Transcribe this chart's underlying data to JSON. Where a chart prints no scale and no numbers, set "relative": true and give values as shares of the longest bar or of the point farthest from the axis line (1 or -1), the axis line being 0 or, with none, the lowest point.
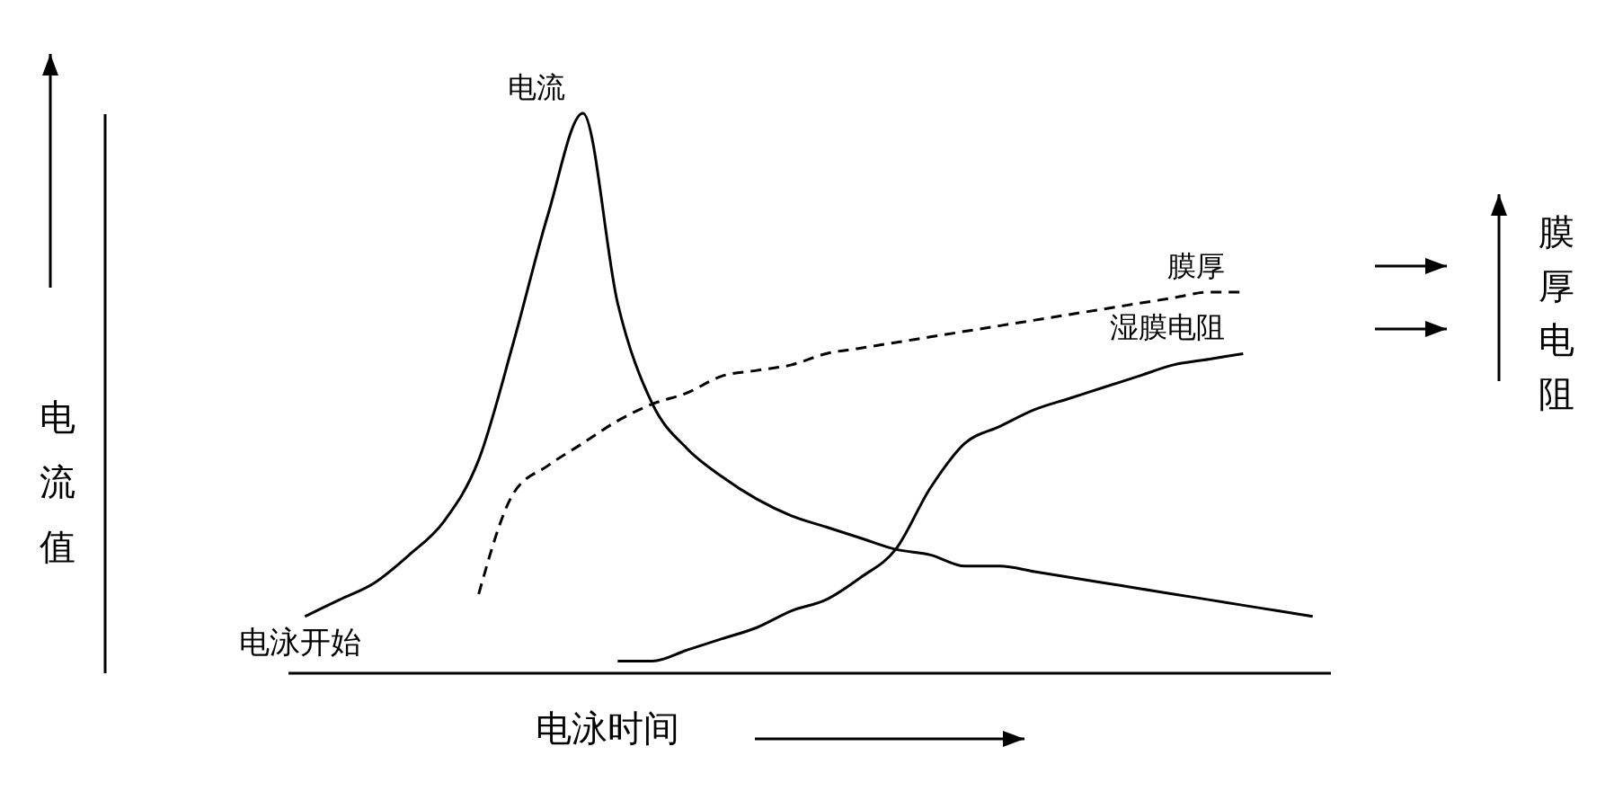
{
  "chart_data": {
    "type": "line",
    "relative": true,
    "categories": [
      null,
      null,
      null,
      null,
      null,
      null,
      null,
      null,
      null,
      null,
      null,
      null,
      null,
      null,
      null,
      null,
      null,
      null,
      null,
      null,
      null,
      null,
      null,
      null,
      null,
      null,
      null,
      null,
      null,
      null
    ],
    "xlabel": "电泳时间",
    "annotations": [
      "电泳开始",
      "膜厚电阻",
      "电流值"
    ],
    "series": [
      {
        "name": "电流",
        "color": "#000000",
        "line_style": "solid",
        "values": [
          0.1,
          0.13,
          0.16,
          0.21,
          0.27,
          0.38,
          0.59,
          0.82,
          1,
          0.66,
          0.48,
          0.4,
          0.35,
          0.31,
          0.28,
          0.26,
          0.24,
          0.22,
          0.21,
          0.19,
          0.19,
          0.18,
          0.17,
          0.16,
          0.15,
          0.14,
          0.13,
          0.12,
          0.11,
          0.1
        ]
      },
      {
        "name": "膜厚",
        "color": "#000000",
        "line_style": "dashed",
        "values": [
          null,
          null,
          null,
          null,
          null,
          0.14,
          0.32,
          0.37,
          0.41,
          0.45,
          0.48,
          0.5,
          0.53,
          0.54,
          0.55,
          0.57,
          0.58,
          0.59,
          0.6,
          0.61,
          0.62,
          0.63,
          0.64,
          0.65,
          0.66,
          0.67,
          0.68,
          0.68,
          null,
          null
        ]
      },
      {
        "name": "湿膜电阻",
        "color": "#000000",
        "line_style": "solid",
        "values": [
          null,
          null,
          null,
          null,
          null,
          null,
          null,
          null,
          null,
          0.02,
          0.02,
          0.04,
          0.06,
          0.08,
          0.11,
          0.13,
          0.17,
          0.22,
          0.33,
          0.41,
          0.44,
          0.47,
          0.49,
          0.51,
          0.53,
          0.55,
          0.56,
          0.57,
          null,
          null
        ]
      }
    ]
  }
}
